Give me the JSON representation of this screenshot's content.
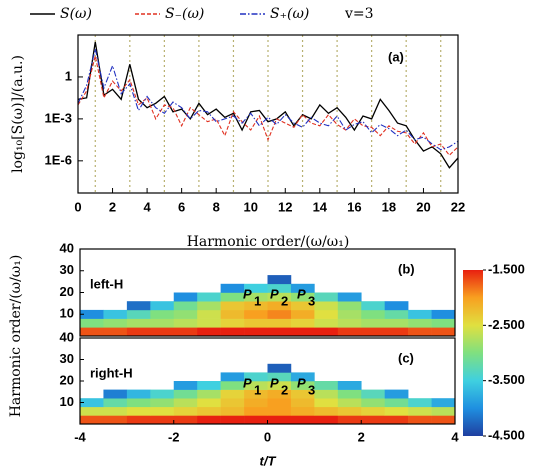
{
  "chart_data": [
    {
      "type": "line",
      "panel_label": "(a)",
      "xlabel": "Harmonic order/(ω/ω₁)",
      "ylabel": "log₁₀[S(ω)]/(a.u.)",
      "legend_note": "v=3",
      "log_scale": true,
      "x": [
        0,
        0.5,
        1,
        1.5,
        2,
        2.5,
        3,
        3.5,
        4,
        4.5,
        5,
        5.5,
        6,
        6.5,
        7,
        7.5,
        8,
        8.5,
        9,
        9.5,
        10,
        10.5,
        11,
        11.5,
        12,
        12.5,
        13,
        13.5,
        14,
        14.5,
        15,
        15.5,
        16,
        16.5,
        17,
        17.5,
        18,
        18.5,
        19,
        19.5,
        20,
        20.5,
        21,
        21.5,
        22
      ],
      "xlim": [
        0,
        22
      ],
      "xticks": [
        0,
        2,
        4,
        6,
        8,
        10,
        12,
        14,
        16,
        18,
        20,
        22
      ],
      "ylim": [
        5e-09,
        1000
      ],
      "yticks": [
        1,
        {
          "value": 0.001,
          "label": "1E-3"
        },
        {
          "value": 1e-06,
          "label": "1E-6"
        }
      ],
      "reference_lines": [
        1,
        3,
        5,
        7,
        9,
        11,
        13,
        15,
        17,
        19,
        21
      ],
      "reference_color": "#b8b070",
      "series": [
        {
          "name": "S(ω)",
          "color": "#000000",
          "dash": "solid",
          "values": [
            0.025,
            0.032,
            320.0,
            0.05,
            0.13,
            0.025,
            8,
            0.025,
            0.0063,
            0.013,
            0.04,
            0.0032,
            0.005,
            0.001,
            0.013,
            0.002,
            0.005,
            0.0013,
            0.0025,
            0.00016,
            0.0032,
            0.004,
            0.00063,
            0.001,
            0.0032,
            0.00032,
            0.002,
            0.001,
            0.01,
            0.0025,
            0.0063,
            0.0013,
            0.00016,
            0.0016,
            0.001,
            0.025,
            0.004,
            0.0005,
            0.00032,
            3.2e-05,
            5e-06,
            1e-05,
            3.2e-06,
            3.2e-07,
            1.6e-06
          ]
        },
        {
          "name": "S₋(ω)",
          "color": "#e03020",
          "dash": "dashed",
          "values": [
            0.01,
            0.1,
            32.0,
            0.032,
            0.5,
            0.1,
            0.63,
            0.01,
            0.032,
            0.001,
            0.01,
            0.0063,
            0.00032,
            0.0063,
            0.002,
            0.00063,
            0.001,
            6.3e-05,
            0.0032,
            0.00063,
            0.00016,
            0.0016,
            3.2e-05,
            0.001,
            0.0005,
            0.00025,
            0.002,
            0.0005,
            0.00032,
            0.002,
            0.0004,
            0.00016,
            0.001,
            0.00032,
            0.00025,
            6.3e-05,
            0.00032,
            0.00013,
            0.0001,
            1.6e-05,
            0.0001,
            1e-05,
            1.6e-05,
            2.5e-06,
            1e-05
          ]
        },
        {
          "name": "S₊(ω)",
          "color": "#2030c0",
          "dash": "dashdot",
          "values": [
            0.013,
            0.25,
            100,
            0.16,
            6.3,
            0.063,
            0.32,
            0.004,
            0.04,
            0.0063,
            0.0025,
            0.016,
            0.0063,
            0.001,
            0.004,
            0.0032,
            0.00063,
            0.001,
            0.0016,
            0.0005,
            0.0025,
            0.00032,
            0.0013,
            0.0004,
            0.002,
            0.0005,
            0.00025,
            0.0013,
            0.0005,
            0.00032,
            0.0016,
            0.00016,
            0.0004,
            0.00063,
            0.0001,
            0.0004,
            0.0002,
            6.3e-05,
            0.00016,
            3.2e-05,
            5e-05,
            1.6e-05,
            6.3e-06,
            1e-05,
            2.5e-05
          ]
        }
      ]
    },
    {
      "type": "heatmap",
      "panel_label": "(b)",
      "annotation": "left-H",
      "ylabel": "Harmonic order/(ω/ω₁)",
      "peak_labels": [
        {
          "text": "P",
          "sub": "1"
        },
        {
          "text": "P",
          "sub": "2"
        },
        {
          "text": "P",
          "sub": "3"
        }
      ],
      "xlim": [
        -4,
        4
      ],
      "ylim": [
        0,
        40
      ],
      "yticks": [
        10,
        20,
        30,
        40
      ],
      "xbins": [
        -4,
        -3.5,
        -3,
        -2.5,
        -2,
        -1.5,
        -1,
        -0.5,
        0,
        0.5,
        1,
        1.5,
        2,
        2.5,
        3,
        3.5,
        4
      ],
      "ybins": [
        0,
        4,
        8,
        12,
        16,
        20,
        24,
        28
      ],
      "z": [
        [
          -1.7,
          -1.7,
          -1.6,
          -1.6,
          -1.6,
          -1.5,
          -1.5,
          -1.5,
          -1.5,
          -1.5,
          -1.5,
          -1.6,
          -1.6,
          -1.6,
          -1.7,
          -1.7
        ],
        [
          -3.0,
          -2.9,
          -2.8,
          -2.8,
          -2.7,
          -2.6,
          -2.4,
          -2.3,
          -2.3,
          -2.4,
          -2.6,
          -2.7,
          -2.8,
          -2.8,
          -2.9,
          -3.0
        ],
        [
          -4.0,
          -3.6,
          -3.3,
          -3.0,
          -2.9,
          -2.6,
          -2.2,
          -2.0,
          -1.9,
          -2.1,
          -2.5,
          -2.8,
          -3.0,
          -3.2,
          -3.6,
          -4.0
        ],
        [
          null,
          null,
          -4.2,
          -3.6,
          -3.1,
          -2.8,
          -2.3,
          -2.2,
          -2.1,
          -2.3,
          -2.6,
          -2.9,
          -3.4,
          -4.0,
          null,
          null
        ],
        [
          null,
          null,
          null,
          null,
          -4.0,
          -3.4,
          -3.0,
          -2.8,
          -2.7,
          -2.9,
          -3.3,
          -3.9,
          null,
          null,
          null,
          null
        ],
        [
          null,
          null,
          null,
          null,
          null,
          null,
          -4.0,
          -3.5,
          -3.4,
          -3.9,
          null,
          null,
          null,
          null,
          null,
          null
        ],
        [
          null,
          null,
          null,
          null,
          null,
          null,
          null,
          null,
          -4.3,
          null,
          null,
          null,
          null,
          null,
          null,
          null
        ]
      ],
      "colorbar": {
        "clim": [
          -4.5,
          -1.5
        ],
        "colormap": [
          "#1f3fa0",
          "#1f8fe0",
          "#3fd0e0",
          "#7fe080",
          "#e0e040",
          "#f8a020",
          "#e82010"
        ],
        "ticks": [
          {
            "value": -1.5,
            "label": "-1.500"
          },
          {
            "value": -2.5,
            "label": "-2.500"
          },
          {
            "value": -3.5,
            "label": "-3.500"
          },
          {
            "value": -4.5,
            "label": "-4.500"
          }
        ]
      }
    },
    {
      "type": "heatmap",
      "panel_label": "(c)",
      "annotation": "right-H",
      "xlabel": "t/T",
      "peak_labels": [
        {
          "text": "P",
          "sub": "1"
        },
        {
          "text": "P",
          "sub": "2"
        },
        {
          "text": "P",
          "sub": "3"
        }
      ],
      "xlim": [
        -4,
        4
      ],
      "xticks": [
        -4,
        -2,
        0,
        2,
        4
      ],
      "ylim": [
        0,
        40
      ],
      "yticks": [
        10,
        20,
        30,
        40
      ],
      "xbins": [
        -4,
        -3.5,
        -3,
        -2.5,
        -2,
        -1.5,
        -1,
        -0.5,
        0,
        0.5,
        1,
        1.5,
        2,
        2.5,
        3,
        3.5,
        4
      ],
      "ybins": [
        0,
        4,
        8,
        12,
        16,
        20,
        24,
        28
      ],
      "z": [
        [
          -1.7,
          -1.7,
          -1.6,
          -1.6,
          -1.6,
          -1.5,
          -1.5,
          -1.5,
          -1.5,
          -1.5,
          -1.5,
          -1.6,
          -1.6,
          -1.6,
          -1.7,
          -1.7
        ],
        [
          -2.6,
          -2.6,
          -2.5,
          -2.5,
          -2.4,
          -2.3,
          -2.2,
          -2.0,
          -2.0,
          -2.1,
          -2.2,
          -2.3,
          -2.4,
          -2.5,
          -2.6,
          -2.7
        ],
        [
          -3.6,
          -3.2,
          -3.0,
          -2.9,
          -2.7,
          -2.5,
          -2.3,
          -2.1,
          -2.0,
          -2.2,
          -2.5,
          -2.7,
          -2.9,
          -3.1,
          -3.4,
          -3.8
        ],
        [
          null,
          -4.1,
          -3.7,
          -3.4,
          -3.1,
          -2.8,
          -2.4,
          -2.2,
          -2.1,
          -2.3,
          -2.7,
          -3.0,
          -3.3,
          -3.9,
          null,
          null
        ],
        [
          null,
          null,
          null,
          null,
          -3.9,
          -3.5,
          -3.0,
          -2.7,
          -2.6,
          -2.9,
          -3.2,
          -3.8,
          null,
          null,
          null,
          null
        ],
        [
          null,
          null,
          null,
          null,
          null,
          null,
          -3.9,
          -3.4,
          -3.3,
          -3.8,
          null,
          null,
          null,
          null,
          null,
          null
        ],
        [
          null,
          null,
          null,
          null,
          null,
          null,
          null,
          null,
          -4.3,
          null,
          null,
          null,
          null,
          null,
          null,
          null
        ]
      ]
    }
  ]
}
